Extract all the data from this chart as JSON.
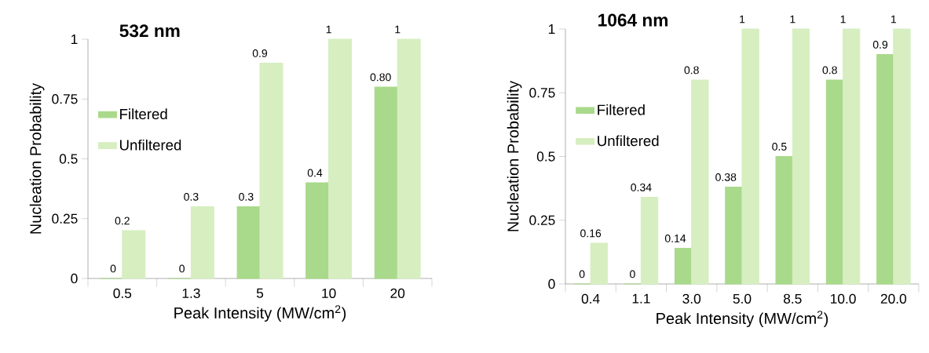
{
  "chart_data": [
    {
      "type": "bar",
      "title": "532 nm",
      "xlabel": "Peak Intensity (MW/cm$^{2}$)",
      "ylabel": "Nucleation Probability",
      "categories": [
        "0.5",
        "1.3",
        "5",
        "10",
        "20"
      ],
      "series": [
        {
          "name": "Filtered",
          "color": "#a9d98a",
          "values": [
            0,
            0,
            0.3,
            0.4,
            0.8
          ],
          "value_labels": [
            "0",
            "0",
            "0.3",
            "0.4",
            "0.80"
          ]
        },
        {
          "name": "Unfiltered",
          "color": "#d6eec0",
          "values": [
            0.2,
            0.3,
            0.9,
            1,
            1
          ],
          "value_labels": [
            "0.2",
            "0.3",
            "0.9",
            "1",
            "1"
          ]
        }
      ],
      "ylim": [
        0,
        1
      ],
      "yticks": [
        0,
        0.25,
        0.5,
        0.75,
        1
      ],
      "legend": "left"
    },
    {
      "type": "bar",
      "title": "1064 nm",
      "xlabel": "Peak Intensity (MW/cm$^{2}$)",
      "ylabel": "Nucleation Probability",
      "categories": [
        "0.4",
        "1.1",
        "3.0",
        "5.0",
        "8.5",
        "10.0",
        "20.0"
      ],
      "series": [
        {
          "name": "Filtered",
          "color": "#a9d98a",
          "values": [
            0,
            0,
            0.14,
            0.38,
            0.5,
            0.8,
            0.9
          ],
          "value_labels": [
            "0",
            "0",
            "0.14",
            "0.38",
            "0.5",
            "0.8",
            "0.9"
          ]
        },
        {
          "name": "Unfiltered",
          "color": "#d6eec0",
          "values": [
            0.16,
            0.34,
            0.8,
            1,
            1,
            1,
            1
          ],
          "value_labels": [
            "0.16",
            "0.34",
            "0.8",
            "1",
            "1",
            "1",
            "1"
          ]
        }
      ],
      "ylim": [
        0,
        1
      ],
      "yticks": [
        0,
        0.25,
        0.5,
        0.75,
        1
      ],
      "legend": "left"
    }
  ]
}
